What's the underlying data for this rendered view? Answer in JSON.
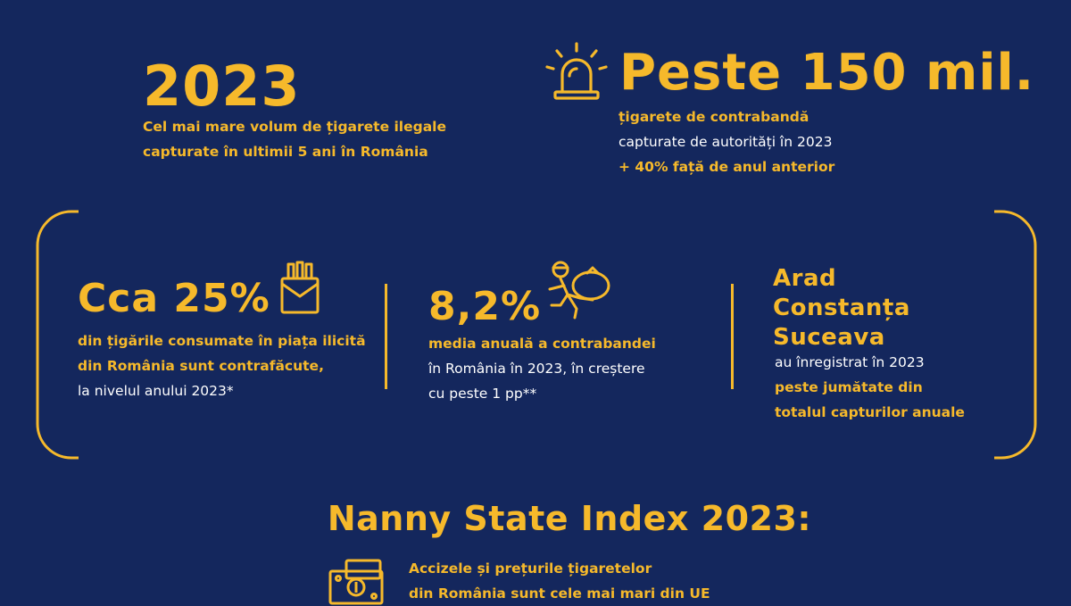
{
  "colors": {
    "background": "#14275d",
    "accent": "#f6b92b",
    "text": "#ffffff"
  },
  "top_left": {
    "headline": "2023",
    "line1": "Cel mai mare volum de țigarete ilegale",
    "line2": "capturate în ultimii 5 ani în România"
  },
  "top_right": {
    "icon": "siren-icon",
    "headline": "Peste 150 mil.",
    "line1": "țigarete de contrabandă",
    "line2": "capturate de autorități în 2023",
    "line3": "+ 40% față de anul anterior"
  },
  "stat1": {
    "icon": "cigarette-pack-icon",
    "headline": "Cca 25%",
    "line1": "din țigările consumate în piața ilicită",
    "line2": "din România sunt contrafăcute,",
    "line3": "la nivelul anului 2023*"
  },
  "stat2": {
    "icon": "running-thief-icon",
    "headline": "8,2%",
    "line1": "media anuală a contrabandei",
    "line2": "în România în 2023, în creștere",
    "line3": "cu peste 1 pp**"
  },
  "stat3": {
    "city1": "Arad",
    "city2": "Constanța",
    "city3": "Suceava",
    "line1": "au înregistrat în 2023",
    "line2": "peste jumătate din",
    "line3": "totalul capturilor anuale"
  },
  "nanny": {
    "title": "Nanny State Index 2023:",
    "icon": "money-icon",
    "line1": "Accizele și prețurile țigaretelor",
    "line2": "din România sunt cele mai mari din UE"
  }
}
